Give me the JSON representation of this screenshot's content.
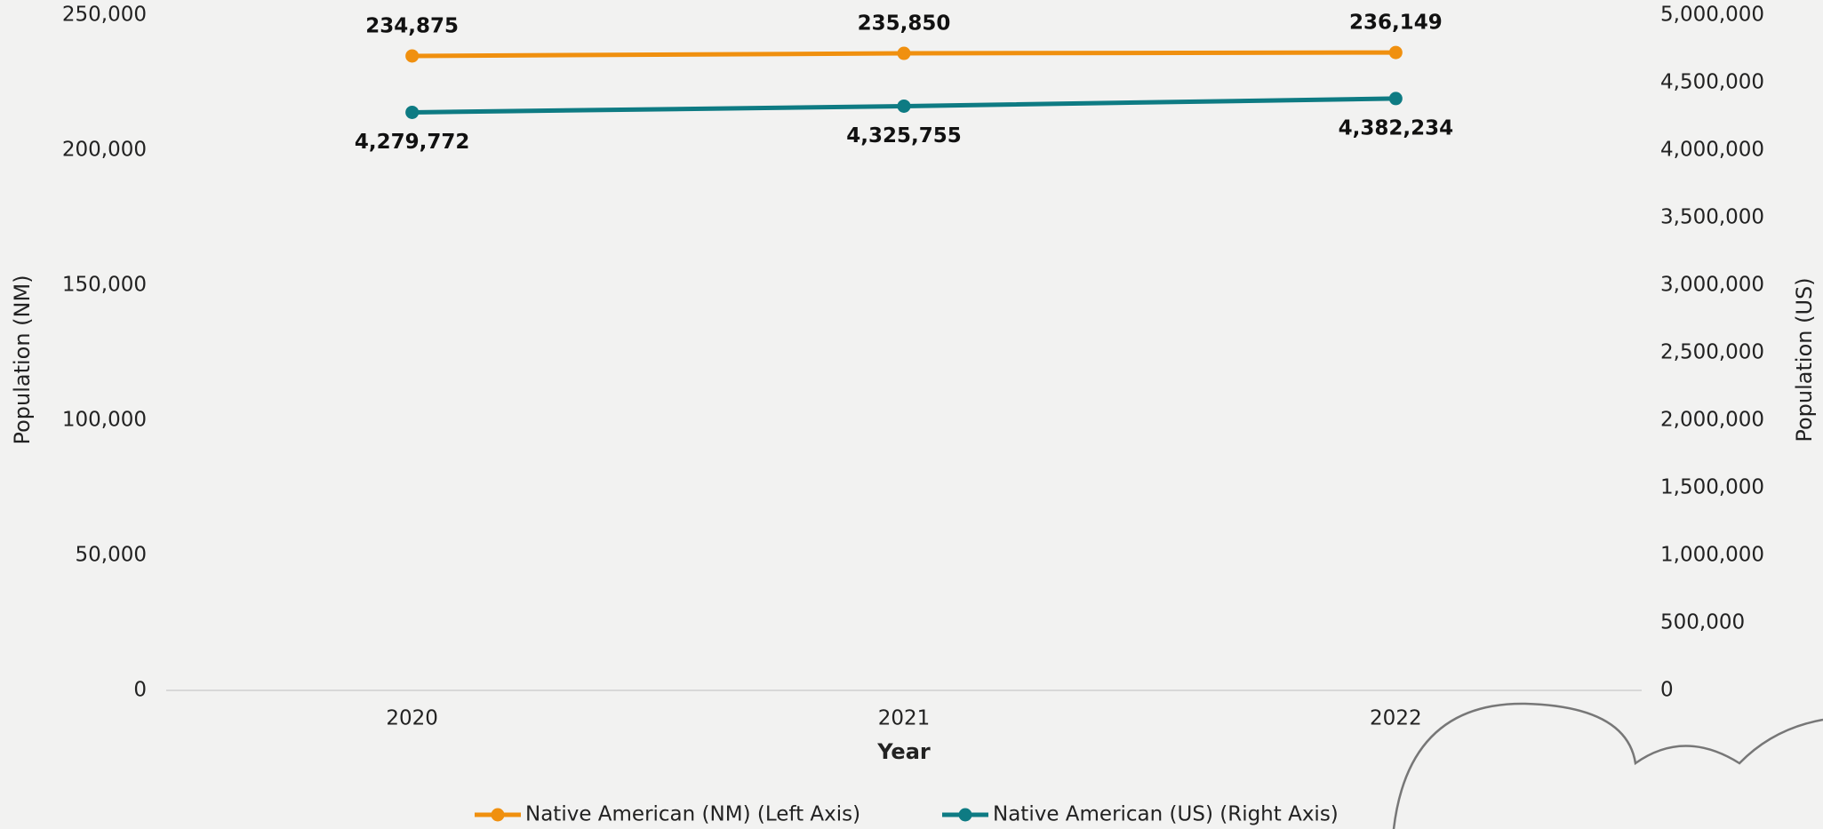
{
  "chart_data": {
    "type": "line",
    "categories": [
      "2020",
      "2021",
      "2022"
    ],
    "x_label": "Year",
    "y_label": "Population (NM)",
    "y2_label": "Population (US)",
    "ylim": [
      0,
      250000
    ],
    "yticks": [
      0,
      {
        "value": 50000,
        "label": "50,000"
      },
      {
        "value": 100000,
        "label": "100,000"
      },
      {
        "value": 150000,
        "label": "150,000"
      },
      {
        "value": 200000,
        "label": "200,000"
      },
      {
        "value": 250000,
        "label": "250,000"
      }
    ],
    "y2lim": [
      0,
      5000000
    ],
    "y2ticks": [
      0,
      {
        "value": 500000,
        "label": "500,000"
      },
      {
        "value": 1000000,
        "label": "1,000,000"
      },
      {
        "value": 1500000,
        "label": "1,500,000"
      },
      {
        "value": 2000000,
        "label": "2,000,000"
      },
      {
        "value": 2500000,
        "label": "2,500,000"
      },
      {
        "value": 3000000,
        "label": "3,000,000"
      },
      {
        "value": 3500000,
        "label": "3,500,000"
      },
      {
        "value": 4000000,
        "label": "4,000,000"
      },
      {
        "value": 4500000,
        "label": "4,500,000"
      },
      {
        "value": 5000000,
        "label": "5,000,000"
      }
    ],
    "series": [
      {
        "name": "Native American (NM) (Left Axis)",
        "color": "#f0900f",
        "values": [
          234875,
          235850,
          236149
        ],
        "value_labels": [
          "234,875",
          "235,850",
          "236,149"
        ]
      },
      {
        "name": "Native American (US) (Right Axis)",
        "color": "#0e7b83",
        "axis": "y2",
        "values": [
          4279772,
          4325755,
          4382234
        ],
        "value_labels": [
          "4,279,772",
          "4,325,755",
          "4,382,234"
        ]
      }
    ],
    "legend": "bottom"
  }
}
